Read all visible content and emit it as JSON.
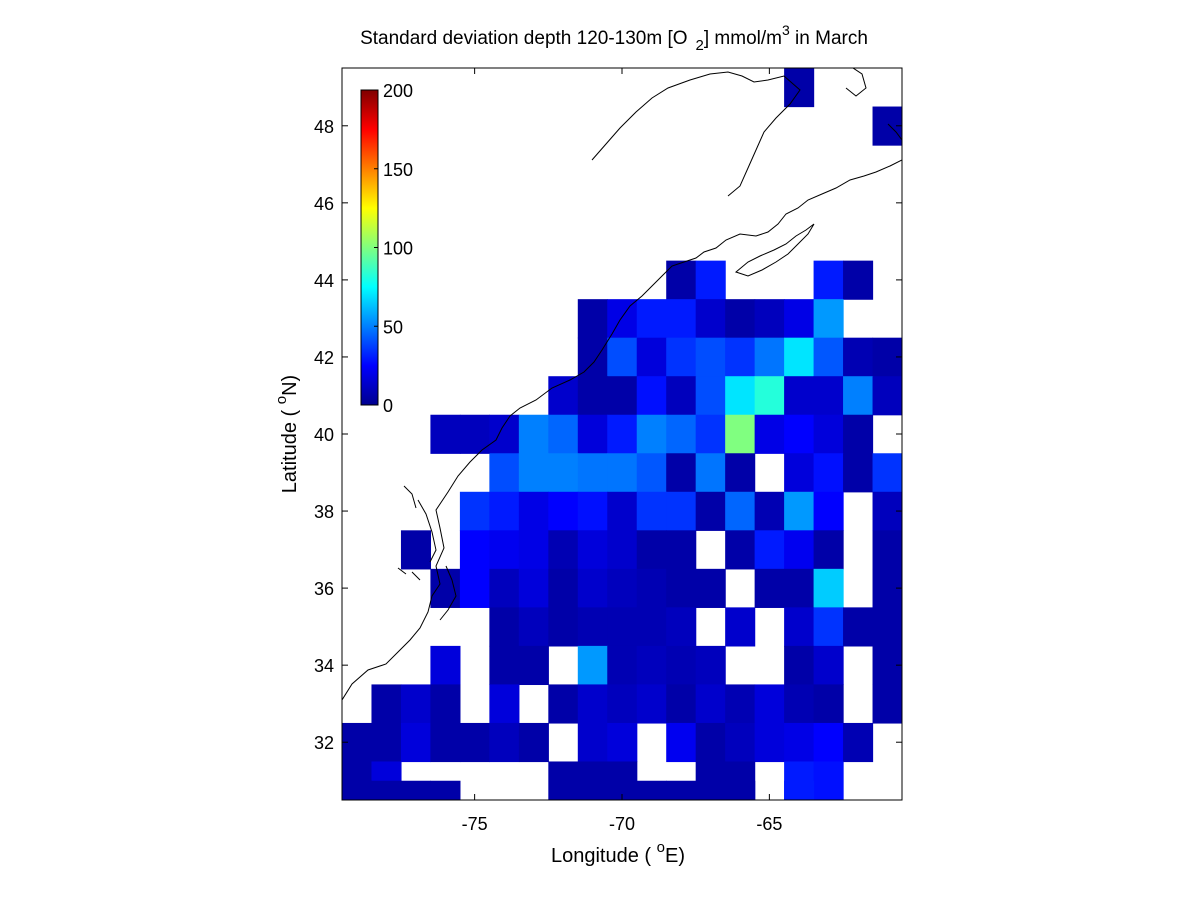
{
  "chart_data": {
    "type": "heatmap",
    "title_parts": {
      "main": "Standard deviation depth 120-130m [O",
      "sub": "2",
      "mid": "] mmol/m",
      "sup": "3",
      "end": " in March"
    },
    "xlabel_parts": {
      "pre": "Longitude ( ",
      "sup": "o",
      "post": "E)"
    },
    "ylabel_parts": {
      "pre": "Latitude ( ",
      "sup": "o",
      "post": "N)"
    },
    "xlim": [
      -79.5,
      -60.5
    ],
    "ylim": [
      30.5,
      49.5
    ],
    "x_ticks": [
      -75,
      -70,
      -65
    ],
    "y_ticks": [
      32,
      34,
      36,
      38,
      40,
      42,
      44,
      46,
      48
    ],
    "colormap": "jet",
    "colorbar": {
      "min": 0,
      "max": 200,
      "ticks": [
        0,
        50,
        100,
        150,
        200
      ],
      "placement": "top-left inside axes"
    },
    "cell_size_deg": 1,
    "cells_note": "rows keyed by cell-center latitude; each row lists [cell-center longitude, value]",
    "cells": [
      {
        "lat": 49,
        "values": [
          [
            -64,
            8
          ]
        ]
      },
      {
        "lat": 48,
        "values": [
          [
            -61,
            8
          ]
        ]
      },
      {
        "lat": 44,
        "values": [
          [
            -68,
            8
          ],
          [
            -67,
            30
          ],
          [
            -63,
            30
          ],
          [
            -62,
            8
          ]
        ]
      },
      {
        "lat": 43,
        "values": [
          [
            -71,
            8
          ],
          [
            -70,
            20
          ],
          [
            -69,
            30
          ],
          [
            -68,
            30
          ],
          [
            -67,
            15
          ],
          [
            -66,
            8
          ],
          [
            -65,
            12
          ],
          [
            -64,
            20
          ],
          [
            -63,
            55
          ]
        ]
      },
      {
        "lat": 42,
        "values": [
          [
            -71,
            8
          ],
          [
            -70,
            40
          ],
          [
            -69,
            18
          ],
          [
            -68,
            35
          ],
          [
            -67,
            40
          ],
          [
            -66,
            35
          ],
          [
            -65,
            48
          ],
          [
            -64,
            70
          ],
          [
            -63,
            42
          ],
          [
            -62,
            10
          ],
          [
            -61,
            8
          ]
        ]
      },
      {
        "lat": 41,
        "values": [
          [
            -72,
            15
          ],
          [
            -71,
            8
          ],
          [
            -70,
            8
          ],
          [
            -69,
            28
          ],
          [
            -68,
            12
          ],
          [
            -67,
            40
          ],
          [
            -66,
            70
          ],
          [
            -65,
            82
          ],
          [
            -64,
            15
          ],
          [
            -63,
            15
          ],
          [
            -62,
            50
          ],
          [
            -61,
            12
          ]
        ]
      },
      {
        "lat": 40,
        "values": [
          [
            -76,
            12
          ],
          [
            -75,
            12
          ],
          [
            -74,
            15
          ],
          [
            -73,
            50
          ],
          [
            -72,
            45
          ],
          [
            -71,
            18
          ],
          [
            -70,
            30
          ],
          [
            -69,
            50
          ],
          [
            -68,
            45
          ],
          [
            -67,
            35
          ],
          [
            -66,
            100
          ],
          [
            -65,
            20
          ],
          [
            -64,
            25
          ],
          [
            -63,
            18
          ],
          [
            -62,
            8
          ]
        ]
      },
      {
        "lat": 39,
        "values": [
          [
            -74,
            40
          ],
          [
            -73,
            50
          ],
          [
            -72,
            50
          ],
          [
            -71,
            48
          ],
          [
            -70,
            48
          ],
          [
            -69,
            42
          ],
          [
            -68,
            8
          ],
          [
            -67,
            48
          ],
          [
            -66,
            8
          ],
          [
            -64,
            18
          ],
          [
            -63,
            28
          ],
          [
            -62,
            8
          ],
          [
            -61,
            35
          ]
        ]
      },
      {
        "lat": 38,
        "values": [
          [
            -75,
            35
          ],
          [
            -74,
            30
          ],
          [
            -73,
            20
          ],
          [
            -72,
            25
          ],
          [
            -71,
            28
          ],
          [
            -70,
            15
          ],
          [
            -69,
            35
          ],
          [
            -68,
            35
          ],
          [
            -67,
            8
          ],
          [
            -66,
            45
          ],
          [
            -65,
            10
          ],
          [
            -64,
            55
          ],
          [
            -63,
            25
          ],
          [
            -61,
            12
          ]
        ]
      },
      {
        "lat": 37,
        "values": [
          [
            -77,
            8
          ],
          [
            -75,
            25
          ],
          [
            -74,
            22
          ],
          [
            -73,
            20
          ],
          [
            -72,
            10
          ],
          [
            -71,
            18
          ],
          [
            -70,
            15
          ],
          [
            -69,
            8
          ],
          [
            -68,
            8
          ],
          [
            -66,
            8
          ],
          [
            -65,
            30
          ],
          [
            -64,
            22
          ],
          [
            -63,
            8
          ],
          [
            -61,
            8
          ]
        ]
      },
      {
        "lat": 36,
        "values": [
          [
            -76,
            8
          ],
          [
            -75,
            25
          ],
          [
            -74,
            12
          ],
          [
            -73,
            18
          ],
          [
            -72,
            8
          ],
          [
            -71,
            15
          ],
          [
            -70,
            12
          ],
          [
            -69,
            10
          ],
          [
            -68,
            8
          ],
          [
            -67,
            8
          ],
          [
            -65,
            8
          ],
          [
            -64,
            8
          ],
          [
            -63,
            65
          ],
          [
            -61,
            8
          ]
        ]
      },
      {
        "lat": 35,
        "values": [
          [
            -74,
            8
          ],
          [
            -73,
            12
          ],
          [
            -72,
            8
          ],
          [
            -71,
            10
          ],
          [
            -70,
            10
          ],
          [
            -69,
            10
          ],
          [
            -68,
            12
          ],
          [
            -66,
            15
          ],
          [
            -64,
            15
          ],
          [
            -63,
            35
          ],
          [
            -62,
            8
          ],
          [
            -61,
            8
          ]
        ]
      },
      {
        "lat": 34,
        "values": [
          [
            -76,
            18
          ],
          [
            -74,
            8
          ],
          [
            -73,
            8
          ],
          [
            -71,
            55
          ],
          [
            -70,
            10
          ],
          [
            -69,
            12
          ],
          [
            -68,
            10
          ],
          [
            -67,
            12
          ],
          [
            -64,
            8
          ],
          [
            -63,
            15
          ],
          [
            -61,
            8
          ]
        ]
      },
      {
        "lat": 33,
        "values": [
          [
            -78,
            8
          ],
          [
            -77,
            15
          ],
          [
            -76,
            8
          ],
          [
            -74,
            18
          ],
          [
            -72,
            8
          ],
          [
            -71,
            15
          ],
          [
            -70,
            12
          ],
          [
            -69,
            15
          ],
          [
            -68,
            8
          ],
          [
            -67,
            15
          ],
          [
            -66,
            10
          ],
          [
            -65,
            18
          ],
          [
            -64,
            10
          ],
          [
            -63,
            8
          ],
          [
            -61,
            8
          ]
        ]
      },
      {
        "lat": 32,
        "values": [
          [
            -79,
            8
          ],
          [
            -78,
            8
          ],
          [
            -77,
            18
          ],
          [
            -76,
            8
          ],
          [
            -75,
            8
          ],
          [
            -74,
            12
          ],
          [
            -73,
            8
          ],
          [
            -71,
            15
          ],
          [
            -70,
            18
          ],
          [
            -68,
            22
          ],
          [
            -67,
            8
          ],
          [
            -66,
            12
          ],
          [
            -65,
            18
          ],
          [
            -64,
            20
          ],
          [
            -63,
            25
          ],
          [
            -62,
            10
          ]
        ]
      },
      {
        "lat": 31,
        "values": [
          [
            -79,
            8
          ],
          [
            -78,
            18
          ],
          [
            -72,
            8
          ],
          [
            -71,
            8
          ],
          [
            -70,
            8
          ],
          [
            -67,
            8
          ],
          [
            -66,
            8
          ],
          [
            -64,
            30
          ],
          [
            -63,
            28
          ]
        ]
      },
      {
        "lat": 30.5,
        "values": [
          [
            -79,
            8
          ],
          [
            -78,
            8
          ],
          [
            -77,
            8
          ],
          [
            -76,
            8
          ],
          [
            -69,
            8
          ],
          [
            -68,
            8
          ],
          [
            -66,
            8
          ],
          [
            -64,
            30
          ]
        ]
      }
    ]
  }
}
